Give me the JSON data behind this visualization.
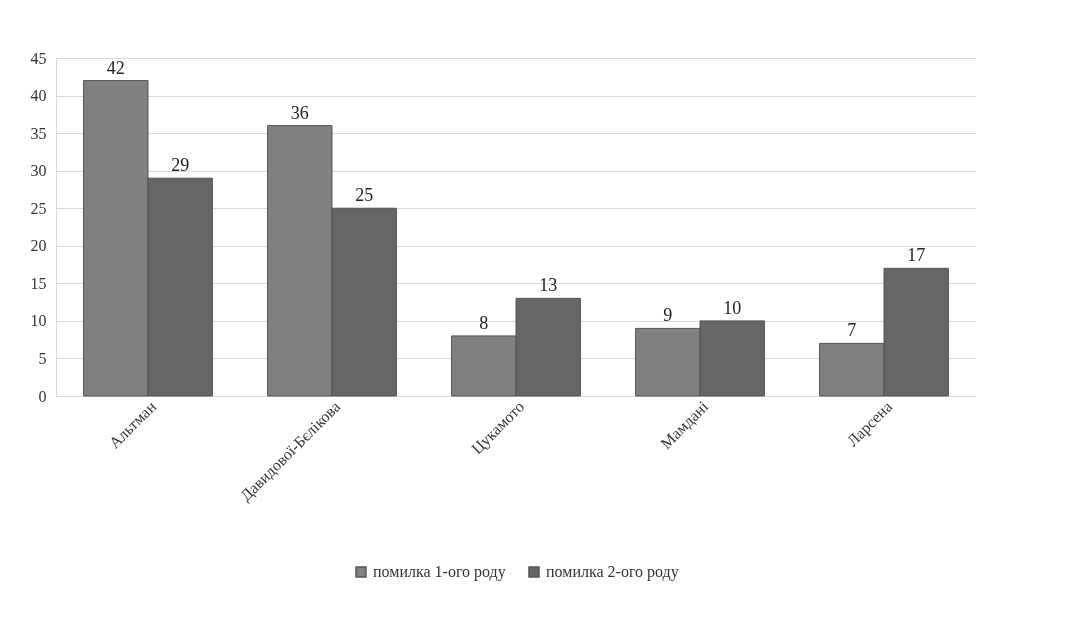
{
  "chart_data": {
    "type": "bar",
    "categories": [
      "Альтман",
      "Давидової-Бєлікова",
      "Цукамото",
      "Мамдані",
      "Ларсена"
    ],
    "series": [
      {
        "name": "помилка 1-ого роду",
        "color": "#808080",
        "values": [
          42,
          36,
          8,
          9,
          7
        ]
      },
      {
        "name": "помилка 2-ого роду",
        "color": "#666666",
        "values": [
          29,
          25,
          13,
          10,
          17
        ]
      }
    ],
    "ylim": [
      0,
      45
    ],
    "yticks": [
      0,
      5,
      10,
      15,
      20,
      25,
      30,
      35,
      40,
      45
    ],
    "grid": "y",
    "legend": "bottom",
    "data_labels": true
  }
}
